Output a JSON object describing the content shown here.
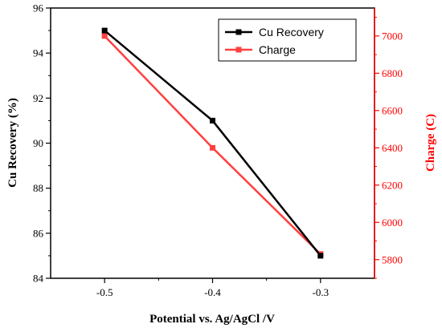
{
  "chart_data": {
    "type": "line",
    "x": [
      -0.5,
      -0.4,
      -0.3
    ],
    "x_ticks": [
      "-0.5",
      "-0.4",
      "-0.3"
    ],
    "xlabel": "Potential vs. Ag/AgCl /V",
    "xlim": [
      -0.55,
      -0.25
    ],
    "grid": false,
    "legend_position": "top-right",
    "series": [
      {
        "name": "Cu Recovery",
        "axis": "left",
        "color": "#000000",
        "marker": "square",
        "values": [
          95,
          91,
          85
        ]
      },
      {
        "name": "Charge",
        "axis": "right",
        "color": "#ff4040",
        "marker": "square",
        "values": [
          7000,
          6400,
          5830
        ]
      }
    ],
    "y_left": {
      "label": "Cu Recovery (%)",
      "range": [
        84,
        96
      ],
      "ticks": [
        "84",
        "86",
        "88",
        "90",
        "92",
        "94",
        "96"
      ],
      "color": "#000000"
    },
    "y_right": {
      "label": "Charge (C)",
      "range": [
        5700,
        7150
      ],
      "ticks": [
        "5800",
        "6000",
        "6200",
        "6400",
        "6600",
        "6800",
        "7000"
      ],
      "color": "#ff0000"
    }
  }
}
